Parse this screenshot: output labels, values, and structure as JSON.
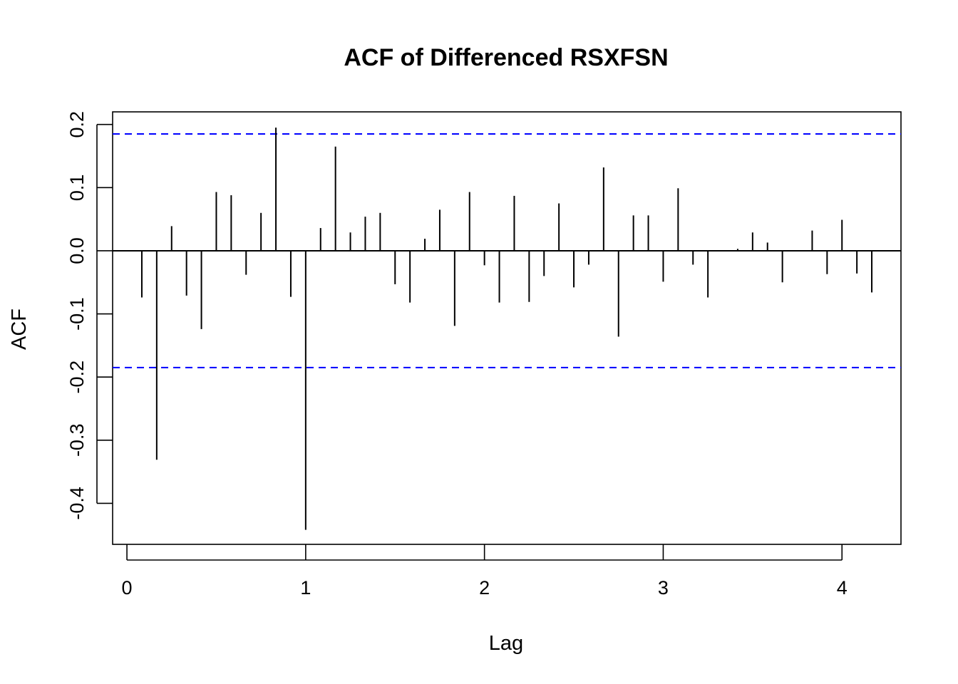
{
  "chart_data": {
    "type": "bar",
    "title": "ACF of Differenced RSXFSN",
    "xlabel": "Lag",
    "ylabel": "ACF",
    "xlim": [
      -0.08,
      4.33
    ],
    "ylim": [
      -0.465,
      0.22
    ],
    "x_ticks": [
      {
        "value": 0,
        "label": "0"
      },
      {
        "value": 1,
        "label": "1"
      },
      {
        "value": 2,
        "label": "2"
      },
      {
        "value": 3,
        "label": "3"
      },
      {
        "value": 4,
        "label": "4"
      }
    ],
    "y_ticks": [
      {
        "value": -0.4,
        "label": "-0.4"
      },
      {
        "value": -0.3,
        "label": "-0.3"
      },
      {
        "value": -0.2,
        "label": "-0.2"
      },
      {
        "value": -0.1,
        "label": "-0.1"
      },
      {
        "value": 0.0,
        "label": "0.0"
      },
      {
        "value": 0.1,
        "label": "0.1"
      },
      {
        "value": 0.2,
        "label": "0.2"
      }
    ],
    "confidence_bound": 0.185,
    "confidence_color": "#0000ff",
    "lag_step": 0.0833333,
    "values": [
      -0.074,
      -0.331,
      0.039,
      -0.071,
      -0.124,
      0.093,
      0.088,
      -0.038,
      0.06,
      0.195,
      -0.073,
      -0.442,
      0.036,
      0.165,
      0.029,
      0.054,
      0.06,
      -0.053,
      -0.082,
      0.019,
      0.065,
      -0.119,
      0.093,
      -0.023,
      -0.082,
      0.087,
      -0.081,
      -0.04,
      0.075,
      -0.058,
      -0.022,
      0.132,
      -0.136,
      0.056,
      0.056,
      -0.049,
      0.099,
      -0.022,
      -0.074,
      0.001,
      0.003,
      0.029,
      0.013,
      -0.05,
      0.001,
      0.032,
      -0.037,
      0.049,
      -0.036,
      -0.066
    ],
    "grid": false,
    "legend": "none"
  }
}
